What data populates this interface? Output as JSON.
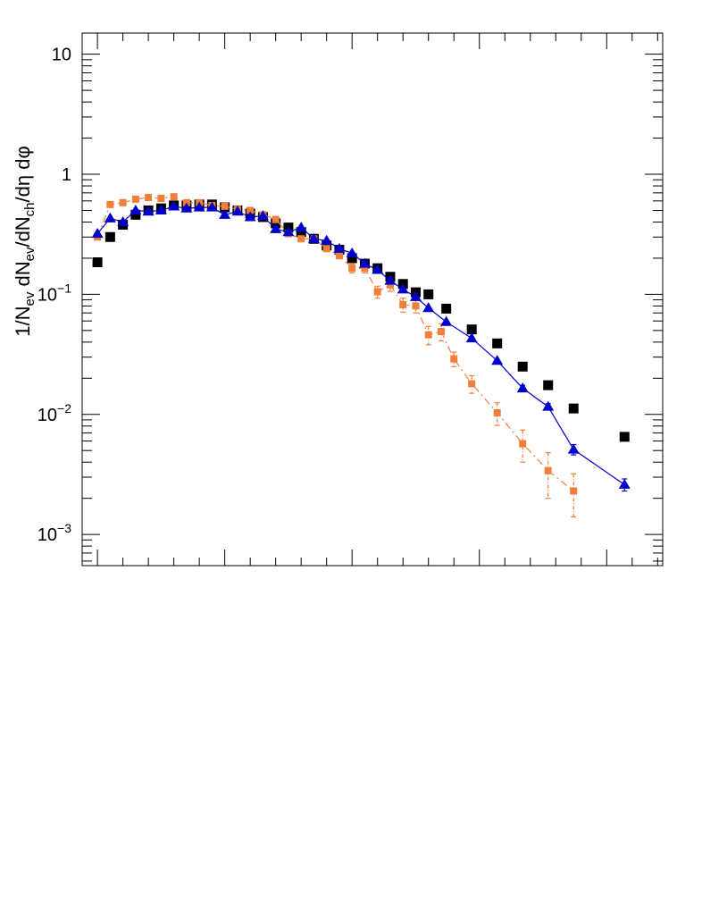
{
  "chart_data": {
    "type": "scatter",
    "title": "",
    "xlabel": "",
    "ylabel": "1/N_ev dN_ev/dN_ch/dη dφ",
    "ylabel_parts": {
      "p1": "1/N",
      "s1": "ev",
      "p2": " dN",
      "s2": "ev",
      "p3": "/dN",
      "s3": "ch",
      "p4": "/dη dφ"
    },
    "yscale": "log",
    "ylim": [
      0.00055,
      15
    ],
    "xlim": [
      -0.6,
      22.2
    ],
    "y_tick_labels": [
      {
        "value": 10,
        "mant": "10",
        "exp": ""
      },
      {
        "value": 1,
        "mant": "1",
        "exp": ""
      },
      {
        "value": 0.1,
        "mant": "10",
        "exp": "−1"
      },
      {
        "value": 0.01,
        "mant": "10",
        "exp": "−2"
      },
      {
        "value": 0.001,
        "mant": "10",
        "exp": "−3"
      }
    ],
    "x_major_ticks": [
      0,
      5,
      10,
      15,
      20
    ],
    "x_tick_labels_visible": false,
    "series": [
      {
        "name": "black squares",
        "color": "#000000",
        "marker": "square",
        "line": "none",
        "points": [
          [
            0,
            0.185
          ],
          [
            0.5,
            0.3
          ],
          [
            1,
            0.38
          ],
          [
            1.5,
            0.46
          ],
          [
            2,
            0.5
          ],
          [
            2.5,
            0.52
          ],
          [
            3,
            0.55
          ],
          [
            3.5,
            0.55
          ],
          [
            4,
            0.56
          ],
          [
            4.5,
            0.56
          ],
          [
            5,
            0.53
          ],
          [
            5.5,
            0.5
          ],
          [
            6,
            0.47
          ],
          [
            6.5,
            0.44
          ],
          [
            7,
            0.39
          ],
          [
            7.5,
            0.36
          ],
          [
            8,
            0.33
          ],
          [
            8.5,
            0.29
          ],
          [
            9,
            0.255
          ],
          [
            9.5,
            0.235
          ],
          [
            10,
            0.2
          ],
          [
            10.5,
            0.18
          ],
          [
            11,
            0.165
          ],
          [
            11.5,
            0.14
          ],
          [
            12,
            0.122
          ],
          [
            12.5,
            0.104
          ],
          [
            13,
            0.1
          ],
          [
            13.7,
            0.076
          ],
          [
            14.7,
            0.051
          ],
          [
            15.7,
            0.039
          ],
          [
            16.7,
            0.025
          ],
          [
            17.7,
            0.0175
          ],
          [
            18.7,
            0.0112
          ],
          [
            20.7,
            0.0065
          ]
        ]
      },
      {
        "name": "orange squares",
        "color": "#f07f3c",
        "marker": "square-small",
        "line": "dash-dot",
        "points": [
          [
            0,
            0.3
          ],
          [
            0.5,
            0.56
          ],
          [
            1,
            0.58
          ],
          [
            1.5,
            0.62
          ],
          [
            2,
            0.64
          ],
          [
            2.5,
            0.63
          ],
          [
            3,
            0.65
          ],
          [
            3.5,
            0.58
          ],
          [
            4,
            0.58
          ],
          [
            4.5,
            0.55
          ],
          [
            5,
            0.54
          ],
          [
            5.5,
            0.51
          ],
          [
            6,
            0.5
          ],
          [
            6.5,
            0.46
          ],
          [
            7,
            0.42
          ],
          [
            7.5,
            0.32
          ],
          [
            8,
            0.29
          ],
          [
            8.5,
            0.29
          ],
          [
            9,
            0.24
          ],
          [
            9.5,
            0.21
          ],
          [
            10,
            0.165
          ],
          [
            10.5,
            0.165
          ],
          [
            11,
            0.105
          ],
          [
            11.5,
            0.12
          ],
          [
            12,
            0.082
          ],
          [
            12.5,
            0.08
          ],
          [
            13,
            0.046
          ],
          [
            13.5,
            0.049
          ],
          [
            14,
            0.029
          ],
          [
            14.7,
            0.018
          ],
          [
            15.7,
            0.0103
          ],
          [
            16.7,
            0.0057
          ],
          [
            17.7,
            0.0034
          ],
          [
            18.7,
            0.0023
          ]
        ],
        "errors": [
          0,
          0,
          0,
          0,
          0,
          0,
          0,
          0,
          0,
          0,
          0,
          0,
          0,
          0,
          0,
          0,
          0,
          0,
          0.012,
          0.012,
          0.014,
          0.014,
          0.012,
          0.014,
          0.011,
          0.01,
          0.008,
          0.008,
          0.004,
          0.003,
          0.0022,
          0.0017,
          0.0014,
          0.0009
        ]
      },
      {
        "name": "blue triangles",
        "color": "#0000cc",
        "marker": "triangle",
        "line": "solid",
        "points": [
          [
            0,
            0.32
          ],
          [
            0.5,
            0.43
          ],
          [
            1,
            0.4
          ],
          [
            1.5,
            0.5
          ],
          [
            2,
            0.49
          ],
          [
            2.5,
            0.5
          ],
          [
            3,
            0.54
          ],
          [
            3.5,
            0.52
          ],
          [
            4,
            0.53
          ],
          [
            4.5,
            0.53
          ],
          [
            5,
            0.46
          ],
          [
            5.5,
            0.49
          ],
          [
            6,
            0.44
          ],
          [
            6.5,
            0.45
          ],
          [
            7,
            0.35
          ],
          [
            7.5,
            0.33
          ],
          [
            8,
            0.36
          ],
          [
            8.5,
            0.29
          ],
          [
            9,
            0.28
          ],
          [
            9.5,
            0.24
          ],
          [
            10,
            0.22
          ],
          [
            10.5,
            0.18
          ],
          [
            11,
            0.16
          ],
          [
            11.5,
            0.13
          ],
          [
            12,
            0.11
          ],
          [
            12.5,
            0.095
          ],
          [
            13,
            0.077
          ],
          [
            13.7,
            0.059
          ],
          [
            14.7,
            0.043
          ],
          [
            15.7,
            0.028
          ],
          [
            16.7,
            0.0165
          ],
          [
            17.7,
            0.0116
          ],
          [
            18.7,
            0.0051
          ],
          [
            20.7,
            0.0026
          ]
        ],
        "errors": [
          0,
          0,
          0,
          0,
          0,
          0,
          0,
          0,
          0,
          0,
          0,
          0,
          0,
          0,
          0,
          0,
          0,
          0,
          0,
          0,
          0,
          0,
          0,
          0,
          0,
          0,
          0,
          0,
          0,
          0,
          0.001,
          0.0007,
          0.0005,
          0.0003
        ]
      }
    ]
  }
}
